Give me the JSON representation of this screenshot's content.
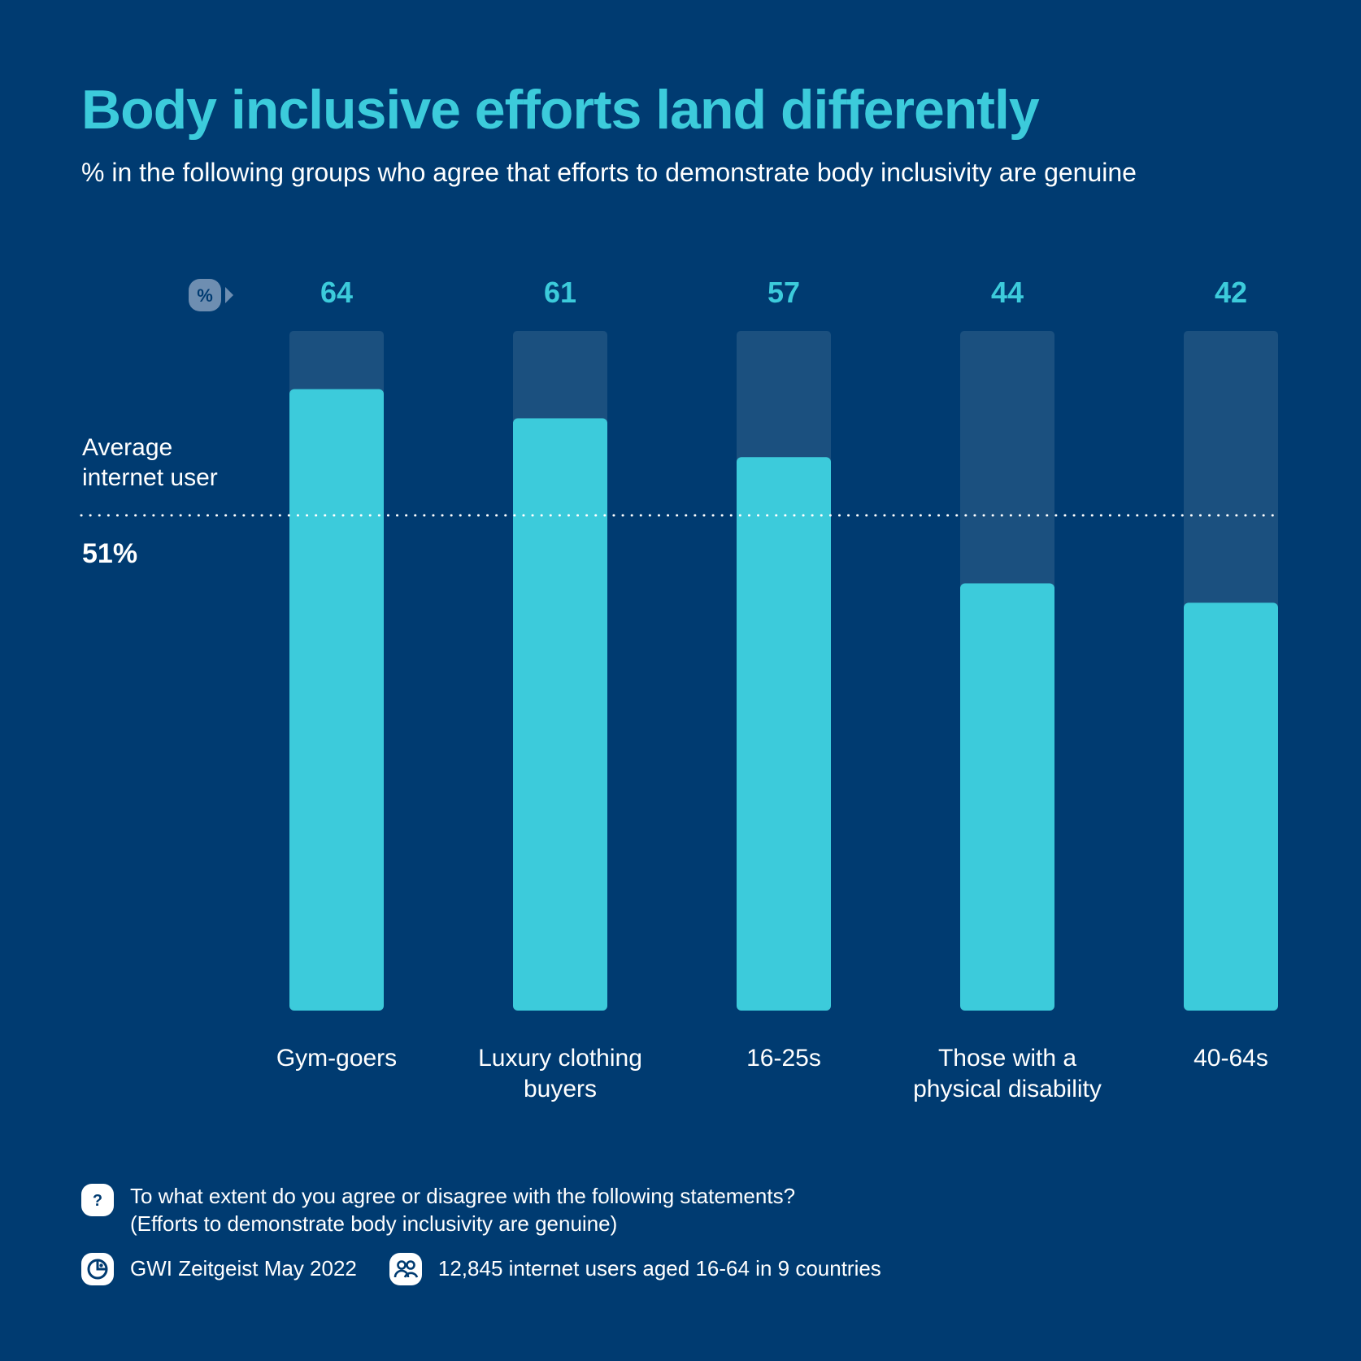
{
  "title": "Body inclusive efforts land differently",
  "subtitle": "% in the following groups who agree that efforts to demonstrate body inclusivity are genuine",
  "colors": {
    "background": "#003b71",
    "bar": "#3ccbdb",
    "track": "#1b507f",
    "badge": "#6e8eb1"
  },
  "chart_data": {
    "type": "bar",
    "unit_badge": "%",
    "categories": [
      [
        "Gym-goers"
      ],
      [
        "Luxury clothing",
        "buyers"
      ],
      [
        "16-25s"
      ],
      [
        "Those with a",
        "physical disability"
      ],
      [
        "40-64s"
      ]
    ],
    "values": [
      64,
      61,
      57,
      44,
      42
    ],
    "ylim": [
      0,
      70
    ],
    "average": {
      "label_lines": [
        "Average",
        "internet user"
      ],
      "value": 51,
      "value_label": "51%"
    }
  },
  "footer": {
    "question_lines": [
      "To what extent do you agree or disagree with the following statements?",
      "(Efforts to demonstrate body inclusivity are genuine)"
    ],
    "source": "GWI Zeitgeist May 2022",
    "sample": "12,845 internet users aged 16-64 in 9 countries"
  }
}
